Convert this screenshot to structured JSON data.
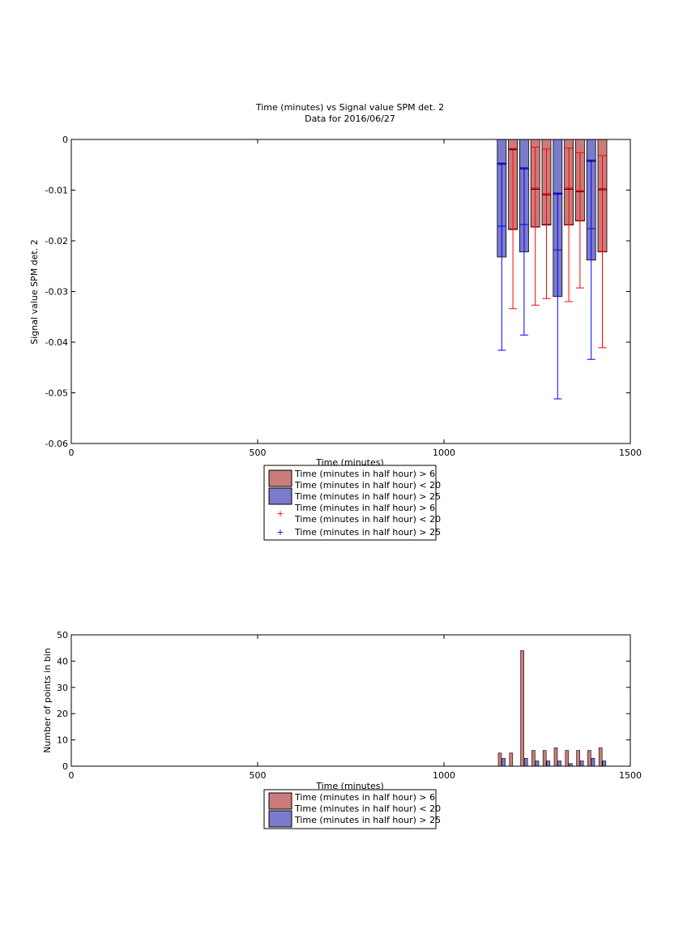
{
  "colors": {
    "red": "#cc7b7b",
    "blue": "#7b7bcc",
    "red_mark": "#ff0000",
    "blue_mark": "#0000ff"
  },
  "chart_data": [
    {
      "type": "bar",
      "title": "Time (minutes) vs Signal value SPM det. 2",
      "subtitle": "Data for 2016/06/27",
      "xlabel": "Time (minutes)",
      "ylabel": "Signal value SPM det. 2",
      "xlim": [
        0,
        1500
      ],
      "ylim": [
        -0.06,
        0
      ],
      "xticks": [
        "0",
        "500",
        "1000",
        "1500"
      ],
      "yticks": [
        "0",
        "-0.01",
        "-0.02",
        "-0.03",
        "-0.04",
        "-0.05",
        "-0.06"
      ],
      "grid": false,
      "legend_position": "below",
      "legend": [
        "Time (minutes in half hour) > 6\nTime (minutes in half hour) < 20",
        "Time (minutes in half hour) > 25",
        "Time (minutes in half hour) > 6\nTime (minutes in half hour) < 20",
        "Time (minutes in half hour) > 25"
      ],
      "series": [
        {
          "x": [
            1185,
            1245,
            1275,
            1335,
            1365,
            1425
          ],
          "values": [
            -0.0178,
            -0.0173,
            -0.0169,
            -0.0169,
            -0.0161,
            -0.0222
          ],
          "mean": [
            -0.0176,
            -0.0172,
            -0.0167,
            -0.0168,
            -0.016,
            -0.0221
          ],
          "error_high": [
            -0.002,
            -0.0015,
            -0.0019,
            -0.0017,
            -0.0026,
            -0.0032
          ],
          "error_low": [
            -0.0334,
            -0.0327,
            -0.0314,
            -0.032,
            -0.0293,
            -0.0411
          ],
          "median": [
            -0.0018,
            -0.0096,
            -0.0107,
            -0.0096,
            -0.0101,
            -0.0097
          ]
        },
        {
          "x": [
            1155,
            1215,
            1305,
            1395
          ],
          "values": [
            -0.0232,
            -0.0222,
            -0.031,
            -0.0238
          ],
          "mean": [
            -0.0171,
            -0.0168,
            -0.0218,
            -0.0176
          ],
          "error_high": [
            -0.0047,
            -0.0056,
            -0.0106,
            -0.0041
          ],
          "error_low": [
            -0.0416,
            -0.0386,
            -0.0512,
            -0.0434
          ],
          "median": [
            -0.0047,
            -0.0056,
            -0.0106,
            -0.0041
          ]
        }
      ],
      "zero_line_x": [
        0,
        1140
      ]
    },
    {
      "type": "bar",
      "xlabel": "Time (minutes)",
      "ylabel": "Number of points in bin",
      "xlim": [
        0,
        1500
      ],
      "ylim": [
        0,
        50
      ],
      "xticks": [
        "0",
        "500",
        "1000",
        "1500"
      ],
      "yticks": [
        "0",
        "10",
        "20",
        "30",
        "40",
        "50"
      ],
      "grid": false,
      "legend_position": "below",
      "legend": [
        "Time (minutes in half hour) > 6\nTime (minutes in half hour) < 20",
        "Time (minutes in half hour) > 25"
      ],
      "series": [
        {
          "x": [
            1150,
            1180,
            1210,
            1240,
            1270,
            1300,
            1330,
            1360,
            1390,
            1420
          ],
          "values": [
            5,
            5,
            44,
            6,
            6,
            7,
            6,
            6,
            6,
            7
          ]
        },
        {
          "x": [
            1160,
            1190,
            1220,
            1250,
            1280,
            1310,
            1340,
            1370,
            1400,
            1430
          ],
          "values": [
            3,
            0,
            3,
            2,
            2,
            2,
            1,
            2,
            3,
            2
          ]
        }
      ]
    }
  ]
}
